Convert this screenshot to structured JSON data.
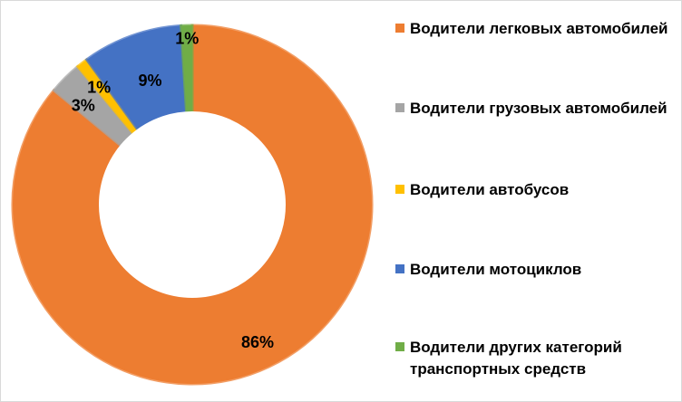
{
  "chart_data": {
    "type": "pie",
    "variant": "donut",
    "title": "",
    "series": [
      {
        "name": "Водители легковых автомобилей",
        "value": 86,
        "label": "86%",
        "color": "#ED7D31"
      },
      {
        "name": "Водители грузовых автомобилей",
        "value": 3,
        "label": "3%",
        "color": "#A5A5A5"
      },
      {
        "name": "Водители автобусов",
        "value": 1,
        "label": "1%",
        "color": "#FFC000"
      },
      {
        "name": "Водители мотоциклов",
        "value": 9,
        "label": "9%",
        "color": "#4472C4"
      },
      {
        "name": "Водители других категорий транспортных средств",
        "value": 1,
        "label": "1%",
        "color": "#70AD47"
      }
    ],
    "legend": {
      "position": "right",
      "items": [
        {
          "label": "Водители легковых автомобилей",
          "color": "#ED7D31"
        },
        {
          "label": "Водители грузовых автомобилей",
          "color": "#A5A5A5"
        },
        {
          "label": "Водители автобусов",
          "color": "#FFC000"
        },
        {
          "label": "Водители мотоциклов",
          "color": "#4472C4"
        },
        {
          "label": "Водители других категорий транспортных средств",
          "color": "#70AD47"
        }
      ]
    }
  }
}
